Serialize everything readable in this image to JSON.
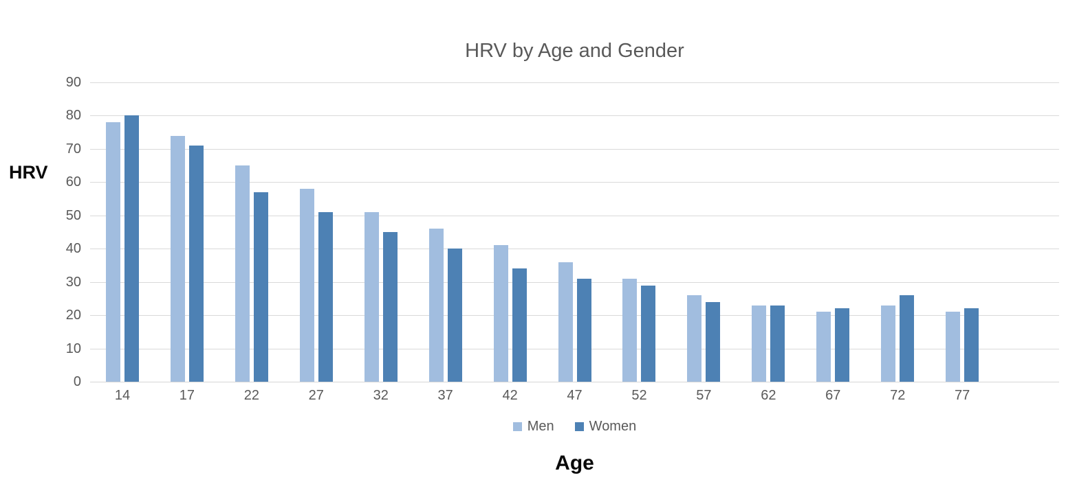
{
  "chart_data": {
    "type": "bar",
    "title": "HRV by Age and Gender",
    "xlabel": "Age",
    "ylabel": "HRV",
    "categories": [
      "14",
      "17",
      "22",
      "27",
      "32",
      "37",
      "42",
      "47",
      "52",
      "57",
      "62",
      "67",
      "72",
      "77"
    ],
    "series": [
      {
        "name": "Men",
        "color": "#a1bddf",
        "values": [
          78,
          74,
          65,
          58,
          51,
          46,
          41,
          36,
          31,
          26,
          23,
          21,
          23,
          21
        ]
      },
      {
        "name": "Women",
        "color": "#4d81b4",
        "values": [
          80,
          71,
          57,
          51,
          45,
          40,
          34,
          31,
          29,
          24,
          23,
          22,
          26,
          22
        ]
      }
    ],
    "ylim": [
      0,
      90
    ],
    "ytick_step": 10,
    "ytick_labels": [
      "0",
      "10",
      "20",
      "30",
      "40",
      "50",
      "60",
      "70",
      "80",
      "90"
    ],
    "grid": true,
    "legend_position": "bottom",
    "trailing_empty_slots": 1,
    "colors": {
      "grid": "#d9d9d9",
      "tick_text": "#595959",
      "title_text": "#595959",
      "axis_title_text": "#0a0a0a",
      "background": "#ffffff"
    }
  }
}
